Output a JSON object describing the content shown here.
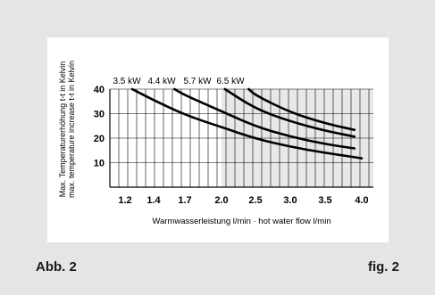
{
  "caption_left": "Abb. 2",
  "caption_right": "fig. 2",
  "chart_data": {
    "type": "line",
    "xlabel": "Warmwasserleistung l/min · hot water flow l/min",
    "ylabel_line1": "Max. Temperaturerhöhung t-t in Kelvin",
    "ylabel_line2": "max. temperature increase t-t in Kelvin",
    "x_ticks": [
      "1.2",
      "1.4",
      "1.7",
      "2.0",
      "2.5",
      "3.0",
      "3.5",
      "4.0"
    ],
    "y_ticks": [
      10,
      20,
      30,
      40
    ],
    "ylim": [
      0,
      40
    ],
    "shaded_from_x": "2.0",
    "series": [
      {
        "name": "3.5 kW",
        "x": [
          "1.25",
          "1.4",
          "1.7",
          "2.0",
          "2.5",
          "3.0",
          "3.5",
          "4.0"
        ],
        "y": [
          40,
          35.5,
          29.5,
          24.5,
          19.8,
          16.5,
          14,
          11.8
        ]
      },
      {
        "name": "4.4 kW",
        "x": [
          "1.6",
          "1.7",
          "2.0",
          "2.5",
          "3.0",
          "3.5",
          "3.9"
        ],
        "y": [
          40,
          37.5,
          31,
          24.8,
          20.6,
          17.6,
          15.8
        ]
      },
      {
        "name": "5.7 kW",
        "x": [
          "2.05",
          "2.5",
          "3.0",
          "3.5",
          "3.9"
        ],
        "y": [
          40,
          32,
          26.8,
          23,
          20.6
        ]
      },
      {
        "name": "6.5 kW",
        "x": [
          "2.4",
          "2.5",
          "3.0",
          "3.5",
          "3.9"
        ],
        "y": [
          40,
          37.5,
          30.5,
          26,
          23.4
        ]
      }
    ]
  }
}
